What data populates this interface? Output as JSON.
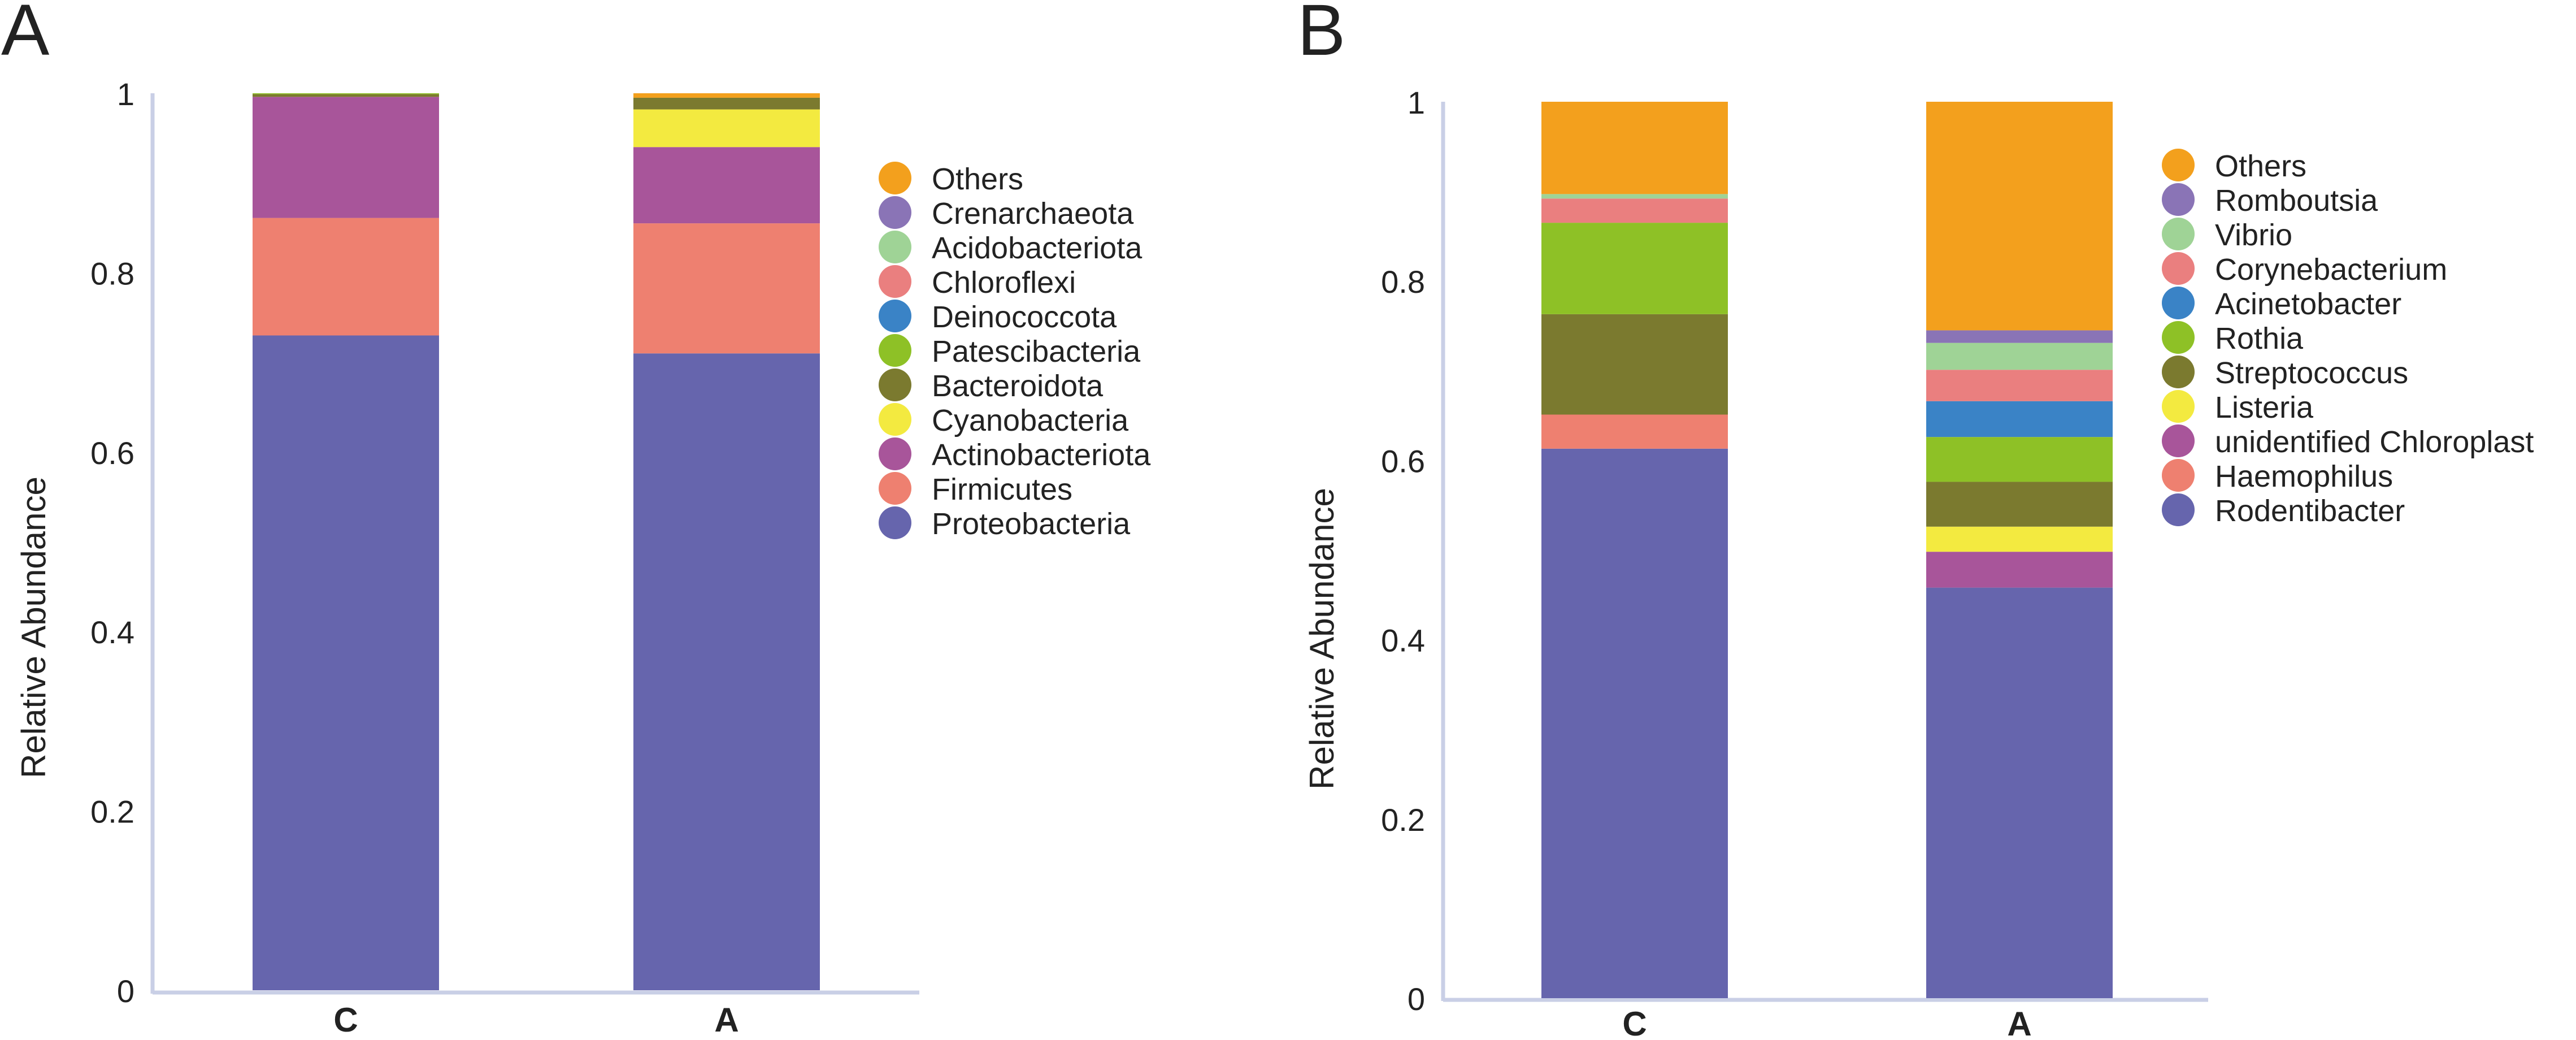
{
  "chart_data": [
    {
      "panel_label": "A",
      "type": "bar",
      "stacked": true,
      "ylabel": "Relative  Abundance",
      "ylim": [
        0,
        1
      ],
      "y_ticks": [
        "0",
        "0.2",
        "0.4",
        "0.6",
        "0.8",
        "1"
      ],
      "categories": [
        "C",
        "A"
      ],
      "series": [
        {
          "name": "Proteobacteria",
          "color": "#6665ad",
          "values": [
            0.73,
            0.71
          ]
        },
        {
          "name": "Firmicutes",
          "color": "#ee8070",
          "values": [
            0.131,
            0.145
          ]
        },
        {
          "name": "Actinobacteriota",
          "color": "#a8559a",
          "values": [
            0.135,
            0.085
          ]
        },
        {
          "name": "Cyanobacteria",
          "color": "#f3ea40",
          "values": [
            0.0,
            0.042
          ]
        },
        {
          "name": "Bacteroidota",
          "color": "#7b7a2f",
          "values": [
            0.003,
            0.013
          ]
        },
        {
          "name": "Patescibacteria",
          "color": "#8ec126",
          "values": [
            0.001,
            0.0
          ]
        },
        {
          "name": "Deinococcota",
          "color": "#3a83c6",
          "values": [
            0.0,
            0.0
          ]
        },
        {
          "name": "Chloroflexi",
          "color": "#ea7f7f",
          "values": [
            0.0,
            0.0
          ]
        },
        {
          "name": "Acidobacteriota",
          "color": "#9fd396",
          "values": [
            0.0,
            0.0
          ]
        },
        {
          "name": "Crenarchaeota",
          "color": "#8a74b6",
          "values": [
            0.0,
            0.0
          ]
        },
        {
          "name": "Others",
          "color": "#f3a01d",
          "values": [
            0.0,
            0.005
          ]
        }
      ],
      "legend_order": [
        "Others",
        "Crenarchaeota",
        "Acidobacteriota",
        "Chloroflexi",
        "Deinococcota",
        "Patescibacteria",
        "Bacteroidota",
        "Cyanobacteria",
        "Actinobacteriota",
        "Firmicutes",
        "Proteobacteria"
      ],
      "legend_position": "right"
    },
    {
      "panel_label": "B",
      "type": "bar",
      "stacked": true,
      "ylabel": "Relative  Abundance",
      "ylim": [
        0,
        1
      ],
      "y_ticks": [
        "0",
        "0.2",
        "0.4",
        "0.6",
        "0.8",
        "1"
      ],
      "categories": [
        "C",
        "A"
      ],
      "series": [
        {
          "name": "Rodentibacter",
          "color": "#6665ad",
          "values": [
            0.613,
            0.458
          ]
        },
        {
          "name": "Haemophilus",
          "color": "#ee8070",
          "values": [
            0.038,
            0.0
          ]
        },
        {
          "name": "unidentified Chloroplast",
          "color": "#a8559a",
          "values": [
            0.0,
            0.04
          ]
        },
        {
          "name": "Listeria",
          "color": "#f3ea40",
          "values": [
            0.0,
            0.028
          ]
        },
        {
          "name": "Streptococcus",
          "color": "#7b7a2f",
          "values": [
            0.112,
            0.05
          ]
        },
        {
          "name": "Rothia",
          "color": "#8ec126",
          "values": [
            0.102,
            0.05
          ]
        },
        {
          "name": "Acinetobacter",
          "color": "#3a83c6",
          "values": [
            0.0,
            0.04
          ]
        },
        {
          "name": "Corynebacterium",
          "color": "#ea7f7f",
          "values": [
            0.027,
            0.035
          ]
        },
        {
          "name": "Vibrio",
          "color": "#9fd396",
          "values": [
            0.005,
            0.03
          ]
        },
        {
          "name": "Romboutsia",
          "color": "#8a74b6",
          "values": [
            0.0,
            0.014
          ]
        },
        {
          "name": "Others",
          "color": "#f3a01d",
          "values": [
            0.103,
            0.255
          ]
        }
      ],
      "legend_order": [
        "Others",
        "Romboutsia",
        "Vibrio",
        "Corynebacterium",
        "Acinetobacter",
        "Rothia",
        "Streptococcus",
        "Listeria",
        "unidentified Chloroplast",
        "Haemophilus",
        "Rodentibacter"
      ],
      "legend_position": "right"
    }
  ]
}
